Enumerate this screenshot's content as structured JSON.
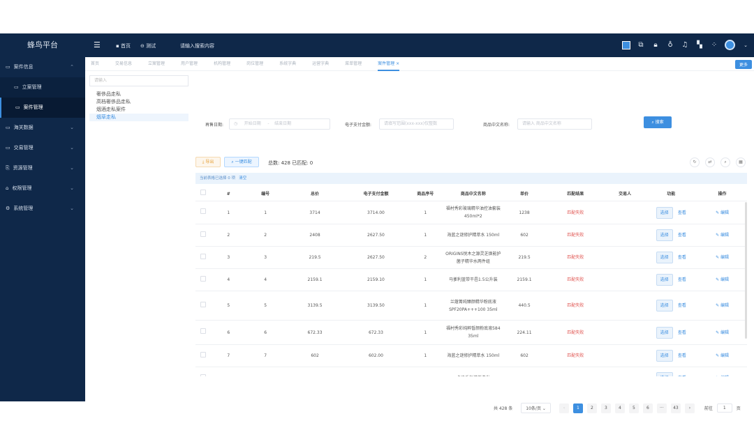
{
  "app": {
    "title": "蜂鸟平台"
  },
  "topbar": {
    "home": "首页",
    "test": "测试",
    "search_placeholder": "请输入搜索内容",
    "icons": [
      "screen-icon",
      "screenshot-icon",
      "lock-icon",
      "shirt-icon",
      "bell-icon",
      "translate-icon",
      "grid-icon",
      "avatar-icon"
    ]
  },
  "sidebar": {
    "items": [
      {
        "label": "案件信息",
        "expanded": true
      },
      {
        "label": "立案管理",
        "sub": true
      },
      {
        "label": "案件管理",
        "sub": true,
        "active": true
      },
      {
        "label": "海关数据"
      },
      {
        "label": "交易管理"
      },
      {
        "label": "资源管理"
      },
      {
        "label": "权限管理"
      },
      {
        "label": "系统管理"
      }
    ]
  },
  "tabs": {
    "items": [
      "首页",
      "交易信息",
      "立案管理",
      "用户管理",
      "机构管理",
      "岗位管理",
      "系统字典",
      "运营字典",
      "菜单管理",
      "案件管理"
    ],
    "active": "案件管理",
    "more": "更多"
  },
  "tree": {
    "placeholder": "请输入",
    "items": [
      "奢侈品走私",
      "高档奢侈品走私",
      "烟酒走私案件",
      "烟草走私"
    ],
    "selected": "烟草走私"
  },
  "filters": {
    "date_label": "再售日期:",
    "date_start": "开始日期",
    "date_sep": "-",
    "date_end": "结束日期",
    "amount_label": "电子支付金额:",
    "amount_placeholder": "请填写范围(xxx-xxx)仅整数",
    "name_label": "商品中文名称:",
    "name_placeholder": "请输入 商品中文名称",
    "search": "搜索"
  },
  "toolbar": {
    "export": "导出",
    "match": "一键匹配",
    "total": "总数: 428  已匹配: 0"
  },
  "selection": {
    "text": "当前表格已选择 0 项",
    "clear": "清空"
  },
  "table": {
    "headers": [
      "#",
      "编号",
      "总价",
      "电子支付金额",
      "商品序号",
      "商品中文名称",
      "单价",
      "匹配结果",
      "交易人",
      "功能",
      "操作"
    ],
    "select_label": "选择",
    "view_label": "查看",
    "edit_label": "编辑",
    "rows": [
      [
        "1",
        "1",
        "3714",
        "3714.00",
        "1",
        "福村秀彩玻璃精华油控油套装 450ml*2",
        "1238",
        "匹配失败",
        ""
      ],
      [
        "2",
        "2",
        "2408",
        "2627.50",
        "1",
        "海蓝之谜修护精萃水 150ml",
        "602",
        "匹配失败",
        ""
      ],
      [
        "3",
        "3",
        "219.5",
        "2627.50",
        "2",
        "ORIGINS悦木之源灵芝焕能护菌子精华水两件组",
        "219.5",
        "匹配失败",
        ""
      ],
      [
        "4",
        "4",
        "2159.1",
        "2159.10",
        "1",
        "马爹利蓝带干邑1.5公升装",
        "2159.1",
        "匹配失败",
        ""
      ],
      [
        "5",
        "5",
        "3139.5",
        "3139.50",
        "1",
        "兰蔻菁纯臻颜精华粉底液SPF20PA+++100 35ml",
        "440.5",
        "匹配失败",
        ""
      ],
      [
        "6",
        "6",
        "672.33",
        "672.33",
        "1",
        "福村秀彩纯粹皙颜粉底液584 35ml",
        "224.11",
        "匹配失败",
        ""
      ],
      [
        "7",
        "7",
        "602",
        "602.00",
        "1",
        "海蓝之谜修护精萃水 150ml",
        "602",
        "匹配失败",
        ""
      ],
      [
        "",
        "",
        "",
        "",
        "",
        "卡诗香氛滋养洗发",
        "",
        "",
        ""
      ]
    ]
  },
  "pagination": {
    "total": "共 428 条",
    "page_size": "10条/页",
    "pages": [
      "1",
      "2",
      "3",
      "4",
      "5",
      "6",
      "···",
      "43"
    ],
    "current": "1",
    "goto_label": "前往",
    "goto_value": "1",
    "goto_suffix": "页"
  },
  "colors": {
    "nav": "#0f2849",
    "accent": "#3d8fe0",
    "fail": "#e0534f"
  }
}
